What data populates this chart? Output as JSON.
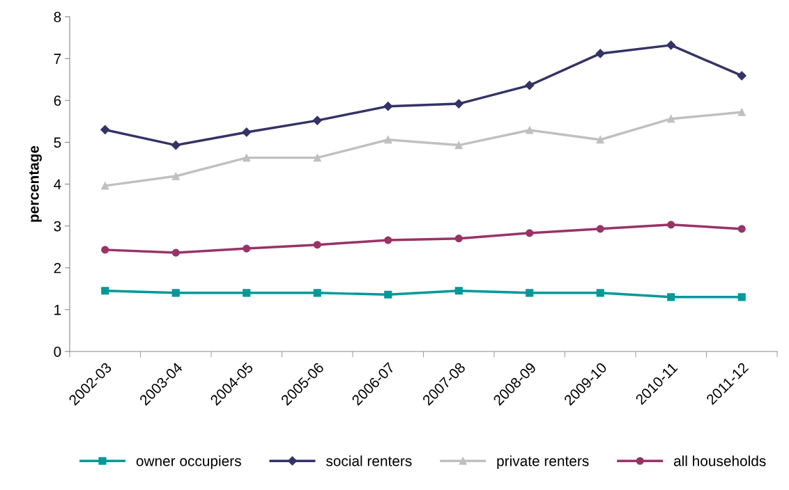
{
  "chart_data": {
    "type": "line",
    "ylabel": "percentage",
    "categories": [
      "2002-03",
      "2003-04",
      "2004-05",
      "2005-06",
      "2006-07",
      "2007-08",
      "2008-09",
      "2009-10",
      "2010-11",
      "2011-12"
    ],
    "ylim": [
      0,
      8
    ],
    "yticks": [
      0,
      1,
      2,
      3,
      4,
      5,
      6,
      7,
      8
    ],
    "grid": false,
    "legend": "bottom",
    "series": [
      {
        "name": "owner occupiers",
        "color": "#009999",
        "marker": "square",
        "values": [
          1.45,
          1.4,
          1.4,
          1.4,
          1.36,
          1.45,
          1.4,
          1.4,
          1.3,
          1.3
        ]
      },
      {
        "name": "social renters",
        "color": "#333366",
        "marker": "diamond",
        "values": [
          5.3,
          4.93,
          5.24,
          5.52,
          5.86,
          5.92,
          6.36,
          7.12,
          7.32,
          6.59
        ]
      },
      {
        "name": "private renters",
        "color": "#c0c0c0",
        "marker": "triangle",
        "values": [
          3.96,
          4.19,
          4.63,
          4.63,
          5.06,
          4.93,
          5.29,
          5.06,
          5.56,
          5.72
        ]
      },
      {
        "name": "all households",
        "color": "#993366",
        "marker": "circle",
        "values": [
          2.43,
          2.36,
          2.46,
          2.55,
          2.66,
          2.7,
          2.83,
          2.93,
          3.03,
          2.93
        ]
      }
    ]
  }
}
